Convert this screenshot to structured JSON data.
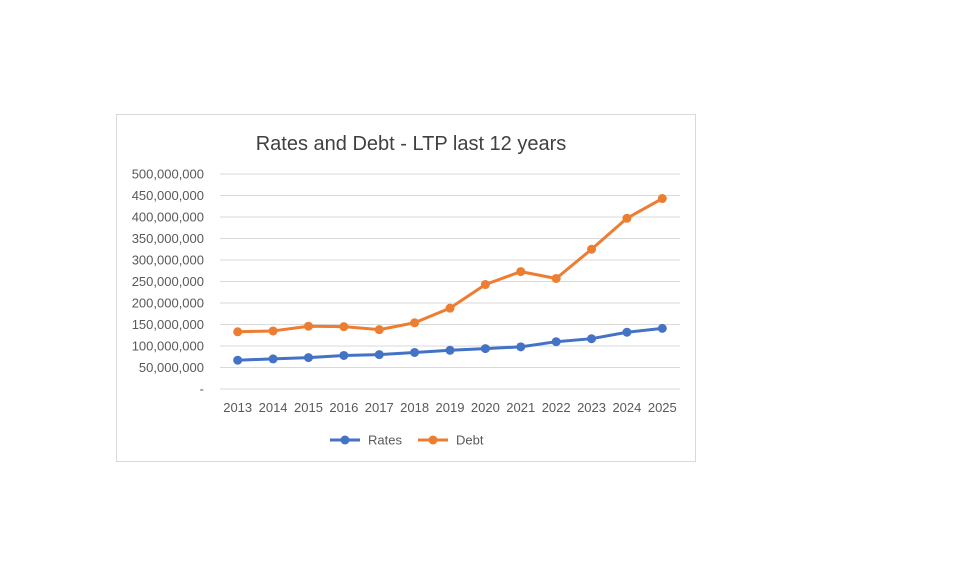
{
  "chart_data": {
    "type": "line",
    "title": "Rates and Debt - LTP last 12 years",
    "xlabel": "",
    "ylabel": "",
    "categories": [
      "2013",
      "2014",
      "2015",
      "2016",
      "2017",
      "2018",
      "2019",
      "2020",
      "2021",
      "2022",
      "2023",
      "2024",
      "2025"
    ],
    "y_ticks": [
      "-",
      "50,000,000",
      "100,000,000",
      "150,000,000",
      "200,000,000",
      "250,000,000",
      "300,000,000",
      "350,000,000",
      "400,000,000",
      "450,000,000",
      "500,000,000"
    ],
    "ylim": [
      0,
      500000000
    ],
    "grid": true,
    "legend_position": "bottom",
    "series": [
      {
        "name": "Rates",
        "color": "#4472c4",
        "values": [
          67000000,
          70000000,
          73000000,
          78000000,
          80000000,
          85000000,
          90000000,
          94000000,
          98000000,
          110000000,
          117000000,
          132000000,
          141000000
        ]
      },
      {
        "name": "Debt",
        "color": "#ed7d31",
        "values": [
          133000000,
          135000000,
          146000000,
          145000000,
          138000000,
          154000000,
          188000000,
          243000000,
          273000000,
          257000000,
          325000000,
          397000000,
          443000000
        ]
      }
    ]
  }
}
